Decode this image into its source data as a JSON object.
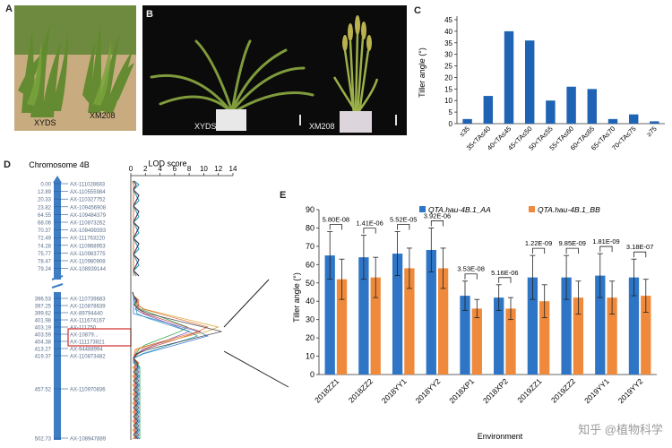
{
  "panelA": {
    "letter": "A",
    "labels": [
      "XYDS",
      "XM208"
    ]
  },
  "panelB": {
    "letter": "B",
    "labels": [
      "XYDS",
      "XM208"
    ]
  },
  "panelD": {
    "letter": "D",
    "title": "Chromosome 4B",
    "lod_title": "LOD score",
    "lod_ticks": [
      "0",
      "2",
      "4",
      "6",
      "8",
      "10",
      "12",
      "14"
    ],
    "markers_top": [
      {
        "pos": "0.00",
        "name": "AX-111028683"
      },
      {
        "pos": "12.89",
        "name": "AX-110555984"
      },
      {
        "pos": "20.33",
        "name": "AX-110327752"
      },
      {
        "pos": "23.82",
        "name": "AX-109456908"
      },
      {
        "pos": "64.55",
        "name": "AX-109484379"
      },
      {
        "pos": "68.06",
        "name": "AX-110873262"
      },
      {
        "pos": "70.37",
        "name": "AX-109499393"
      },
      {
        "pos": "72.49",
        "name": "AX-111763220"
      },
      {
        "pos": "74.28",
        "name": "AX-110968953"
      },
      {
        "pos": "75.77",
        "name": "AX-110983775"
      },
      {
        "pos": "78.47",
        "name": "AX-110980908"
      },
      {
        "pos": "79.24",
        "name": "AX-108939144"
      }
    ],
    "markers_bottom": [
      {
        "pos": "396.53",
        "name": "AX-110739683"
      },
      {
        "pos": "397.25",
        "name": "AX-110878639"
      },
      {
        "pos": "399.62",
        "name": "AX-89794440"
      },
      {
        "pos": "401.98",
        "name": "AX-111674167"
      },
      {
        "pos": "403.19",
        "name": "AX-111750..."
      },
      {
        "pos": "403.59",
        "name": "AX-10879..."
      },
      {
        "pos": "404.38",
        "name": "AX-111173821"
      },
      {
        "pos": "413.27",
        "name": "AX-94488994"
      },
      {
        "pos": "419.37",
        "name": "AX-110873482"
      },
      {
        "pos": "457.52",
        "name": "AX-110970836"
      },
      {
        "pos": "502.73",
        "name": "AX-108947889"
      }
    ]
  },
  "panelC": {
    "letter": "C",
    "chart_data": {
      "type": "bar",
      "ylabel": "Tiller angle (°)",
      "ylim": [
        0,
        45
      ],
      "yticks": [
        0,
        5,
        10,
        15,
        20,
        25,
        30,
        35,
        40,
        45
      ],
      "categories": [
        "≤35",
        "35<TA≤40",
        "40<TA≤45",
        "45<TA≤50",
        "50<TA≤55",
        "55<TA≤60",
        "60<TA≤65",
        "65<TA≤70",
        "70<TA≤75",
        "≥75"
      ],
      "values": [
        2,
        12,
        40,
        36,
        10,
        16,
        15,
        2,
        4,
        1
      ],
      "color": "#1f64b4",
      "grid": false
    }
  },
  "panelE": {
    "letter": "E",
    "chart_data": {
      "type": "bar",
      "xlabel": "Environment",
      "ylabel": "Tiller angle (°)",
      "ylim": [
        0,
        90
      ],
      "yticks": [
        0,
        10,
        20,
        30,
        40,
        50,
        60,
        70,
        80,
        90
      ],
      "categories": [
        "2018ZZ1",
        "2018ZZ2",
        "2018YY1",
        "2018YY2",
        "2018XP1",
        "2018XP2",
        "2019ZZ1",
        "2019ZZ2",
        "2019YY1",
        "2019YY2"
      ],
      "series": [
        {
          "name": "QTA.hau-4B.1_AA",
          "color": "#2e75c6",
          "values": [
            65,
            64,
            66,
            68,
            43,
            42,
            53,
            53,
            54,
            53
          ],
          "errors": [
            13,
            12,
            12,
            12,
            8,
            7,
            12,
            12,
            12,
            10
          ]
        },
        {
          "name": "QTA.hau-4B.1_BB",
          "color": "#ef8a3c",
          "values": [
            52,
            53,
            58,
            58,
            36,
            36,
            40,
            42,
            42,
            43
          ],
          "errors": [
            11,
            11,
            11,
            11,
            5,
            6,
            9,
            9,
            9,
            9
          ]
        }
      ],
      "pvalues": [
        "5.80E-08",
        "1.41E-06",
        "5.52E-05",
        "3.92E-06",
        "3.53E-08",
        "5.16E-06",
        "1.22E-09",
        "9.85E-09",
        "1.81E-09",
        "3.18E-07"
      ],
      "legend": "top",
      "grid": false
    }
  },
  "watermark": "知乎 @植物科学"
}
